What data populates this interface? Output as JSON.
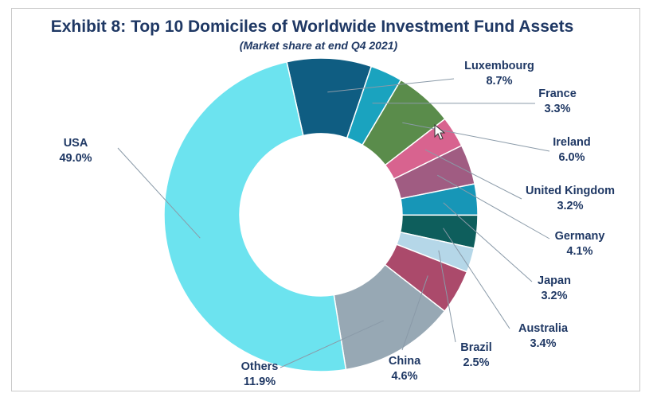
{
  "chart_data": {
    "type": "pie",
    "title": "Exhibit 8: Top 10 Domiciles of Worldwide Investment Fund Assets",
    "subtitle": "(Market share at end Q4 2021)",
    "slices": [
      {
        "name": "Luxembourg",
        "value": 8.7,
        "label": "8.7%",
        "color": "#0f5d82"
      },
      {
        "name": "France",
        "value": 3.3,
        "label": "3.3%",
        "color": "#1aa3bf"
      },
      {
        "name": "Ireland",
        "value": 6.0,
        "label": "6.0%",
        "color": "#5a8c4b"
      },
      {
        "name": "United Kingdom",
        "value": 3.2,
        "label": "3.2%",
        "color": "#d8638f"
      },
      {
        "name": "Germany",
        "value": 4.1,
        "label": "4.1%",
        "color": "#a05c82"
      },
      {
        "name": "Japan",
        "value": 3.2,
        "label": "3.2%",
        "color": "#1796b7"
      },
      {
        "name": "Australia",
        "value": 3.4,
        "label": "3.4%",
        "color": "#0e5e5c"
      },
      {
        "name": "Brazil",
        "value": 2.5,
        "label": "2.5%",
        "color": "#b5d7e8"
      },
      {
        "name": "China",
        "value": 4.6,
        "label": "4.6%",
        "color": "#ab4a6b"
      },
      {
        "name": "Others",
        "value": 11.9,
        "label": "11.9%",
        "color": "#97a8b4"
      },
      {
        "name": "USA",
        "value": 49.0,
        "label": "49.0%",
        "color": "#6ce3ef"
      }
    ]
  }
}
